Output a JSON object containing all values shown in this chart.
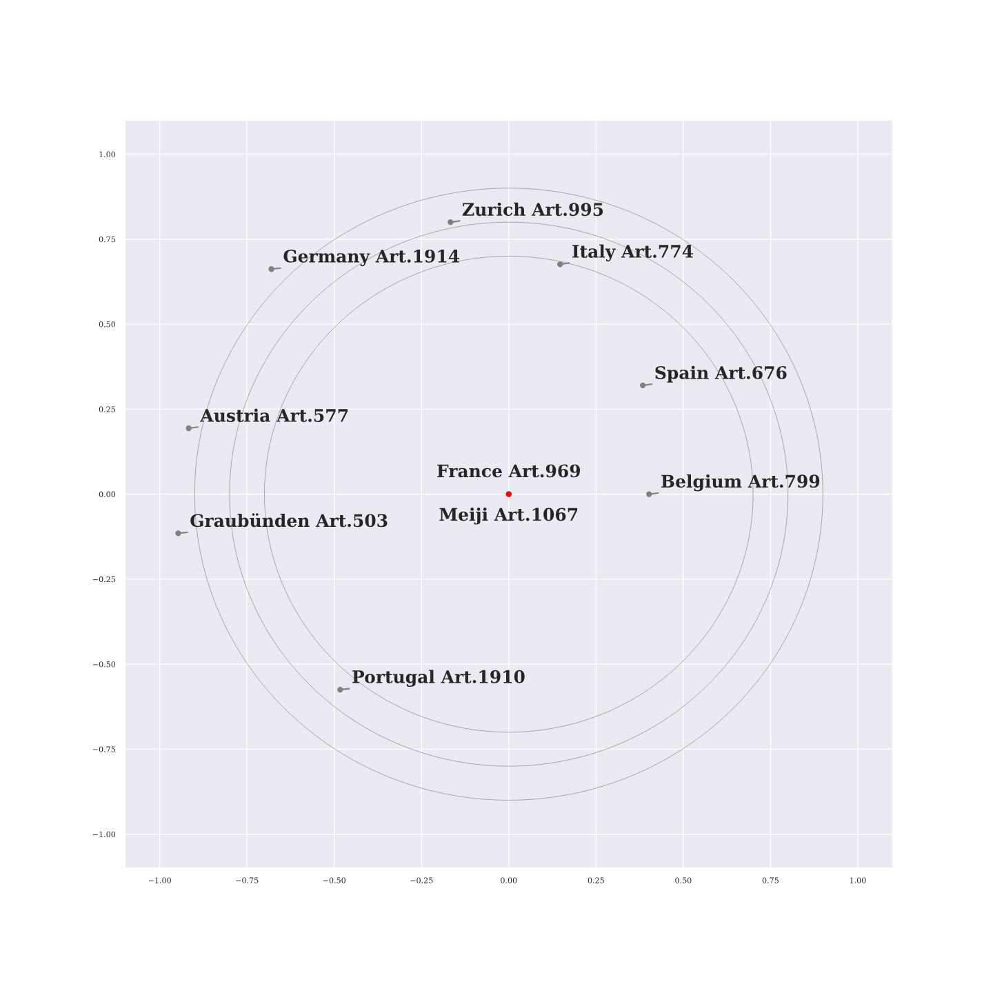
{
  "chart_data": {
    "type": "scatter",
    "xlim": [
      -1.1,
      1.1
    ],
    "ylim": [
      -1.1,
      1.1
    ],
    "xticks": [
      {
        "value": -1.0,
        "label": "−1.00"
      },
      {
        "value": -0.75,
        "label": "−0.75"
      },
      {
        "value": -0.5,
        "label": "−0.50"
      },
      {
        "value": -0.25,
        "label": "−0.25"
      },
      {
        "value": 0,
        "label": "0.00"
      },
      {
        "value": 0.25,
        "label": "0.25"
      },
      {
        "value": 0.5,
        "label": "0.50"
      },
      {
        "value": 0.75,
        "label": "0.75"
      },
      {
        "value": 1.0,
        "label": "1.00"
      }
    ],
    "yticks": [
      {
        "value": -1.0,
        "label": "−1.00"
      },
      {
        "value": -0.75,
        "label": "−0.75"
      },
      {
        "value": -0.5,
        "label": "−0.50"
      },
      {
        "value": -0.25,
        "label": "−0.25"
      },
      {
        "value": 0,
        "label": "0.00"
      },
      {
        "value": 0.25,
        "label": "0.25"
      },
      {
        "value": 0.5,
        "label": "0.50"
      },
      {
        "value": 0.75,
        "label": "0.75"
      },
      {
        "value": 1.0,
        "label": "1.00"
      }
    ],
    "grid": true,
    "marker": "circle",
    "series": [
      {
        "type": "scatter",
        "x": [
          -0.167,
          -0.68,
          0.147,
          0.384,
          -0.917,
          0,
          0,
          0.402,
          -0.947,
          -0.483
        ],
        "values": [
          0.8,
          0.662,
          0.676,
          0.32,
          0.194,
          0,
          0,
          0,
          -0.115,
          -0.575
        ],
        "colors": [
          "#808080",
          "#808080",
          "#808080",
          "#808080",
          "#808080",
          "#808080",
          "#ff0000",
          "#808080",
          "#808080",
          "#808080"
        ]
      }
    ],
    "annotations": [
      {
        "text": "Zurich Art.995",
        "x": -0.167,
        "y": 0.8
      },
      {
        "text": "Germany Art.1914",
        "x": -0.68,
        "y": 0.662
      },
      {
        "text": "Italy Art.774",
        "x": 0.147,
        "y": 0.676
      },
      {
        "text": "Spain Art.676",
        "x": 0.384,
        "y": 0.32
      },
      {
        "text": "Austria Art.577",
        "x": -0.917,
        "y": 0.194
      },
      {
        "text": "France Art.969",
        "x": 0,
        "y": 0
      },
      {
        "text": "Meiji Art.1067",
        "x": 0,
        "y": 0
      },
      {
        "text": "Belgium Art.799",
        "x": 0.402,
        "y": 0
      },
      {
        "text": "Graubünden Art.503",
        "x": -0.947,
        "y": -0.115
      },
      {
        "text": "Portugal Art.1910",
        "x": -0.483,
        "y": -0.575
      }
    ]
  }
}
